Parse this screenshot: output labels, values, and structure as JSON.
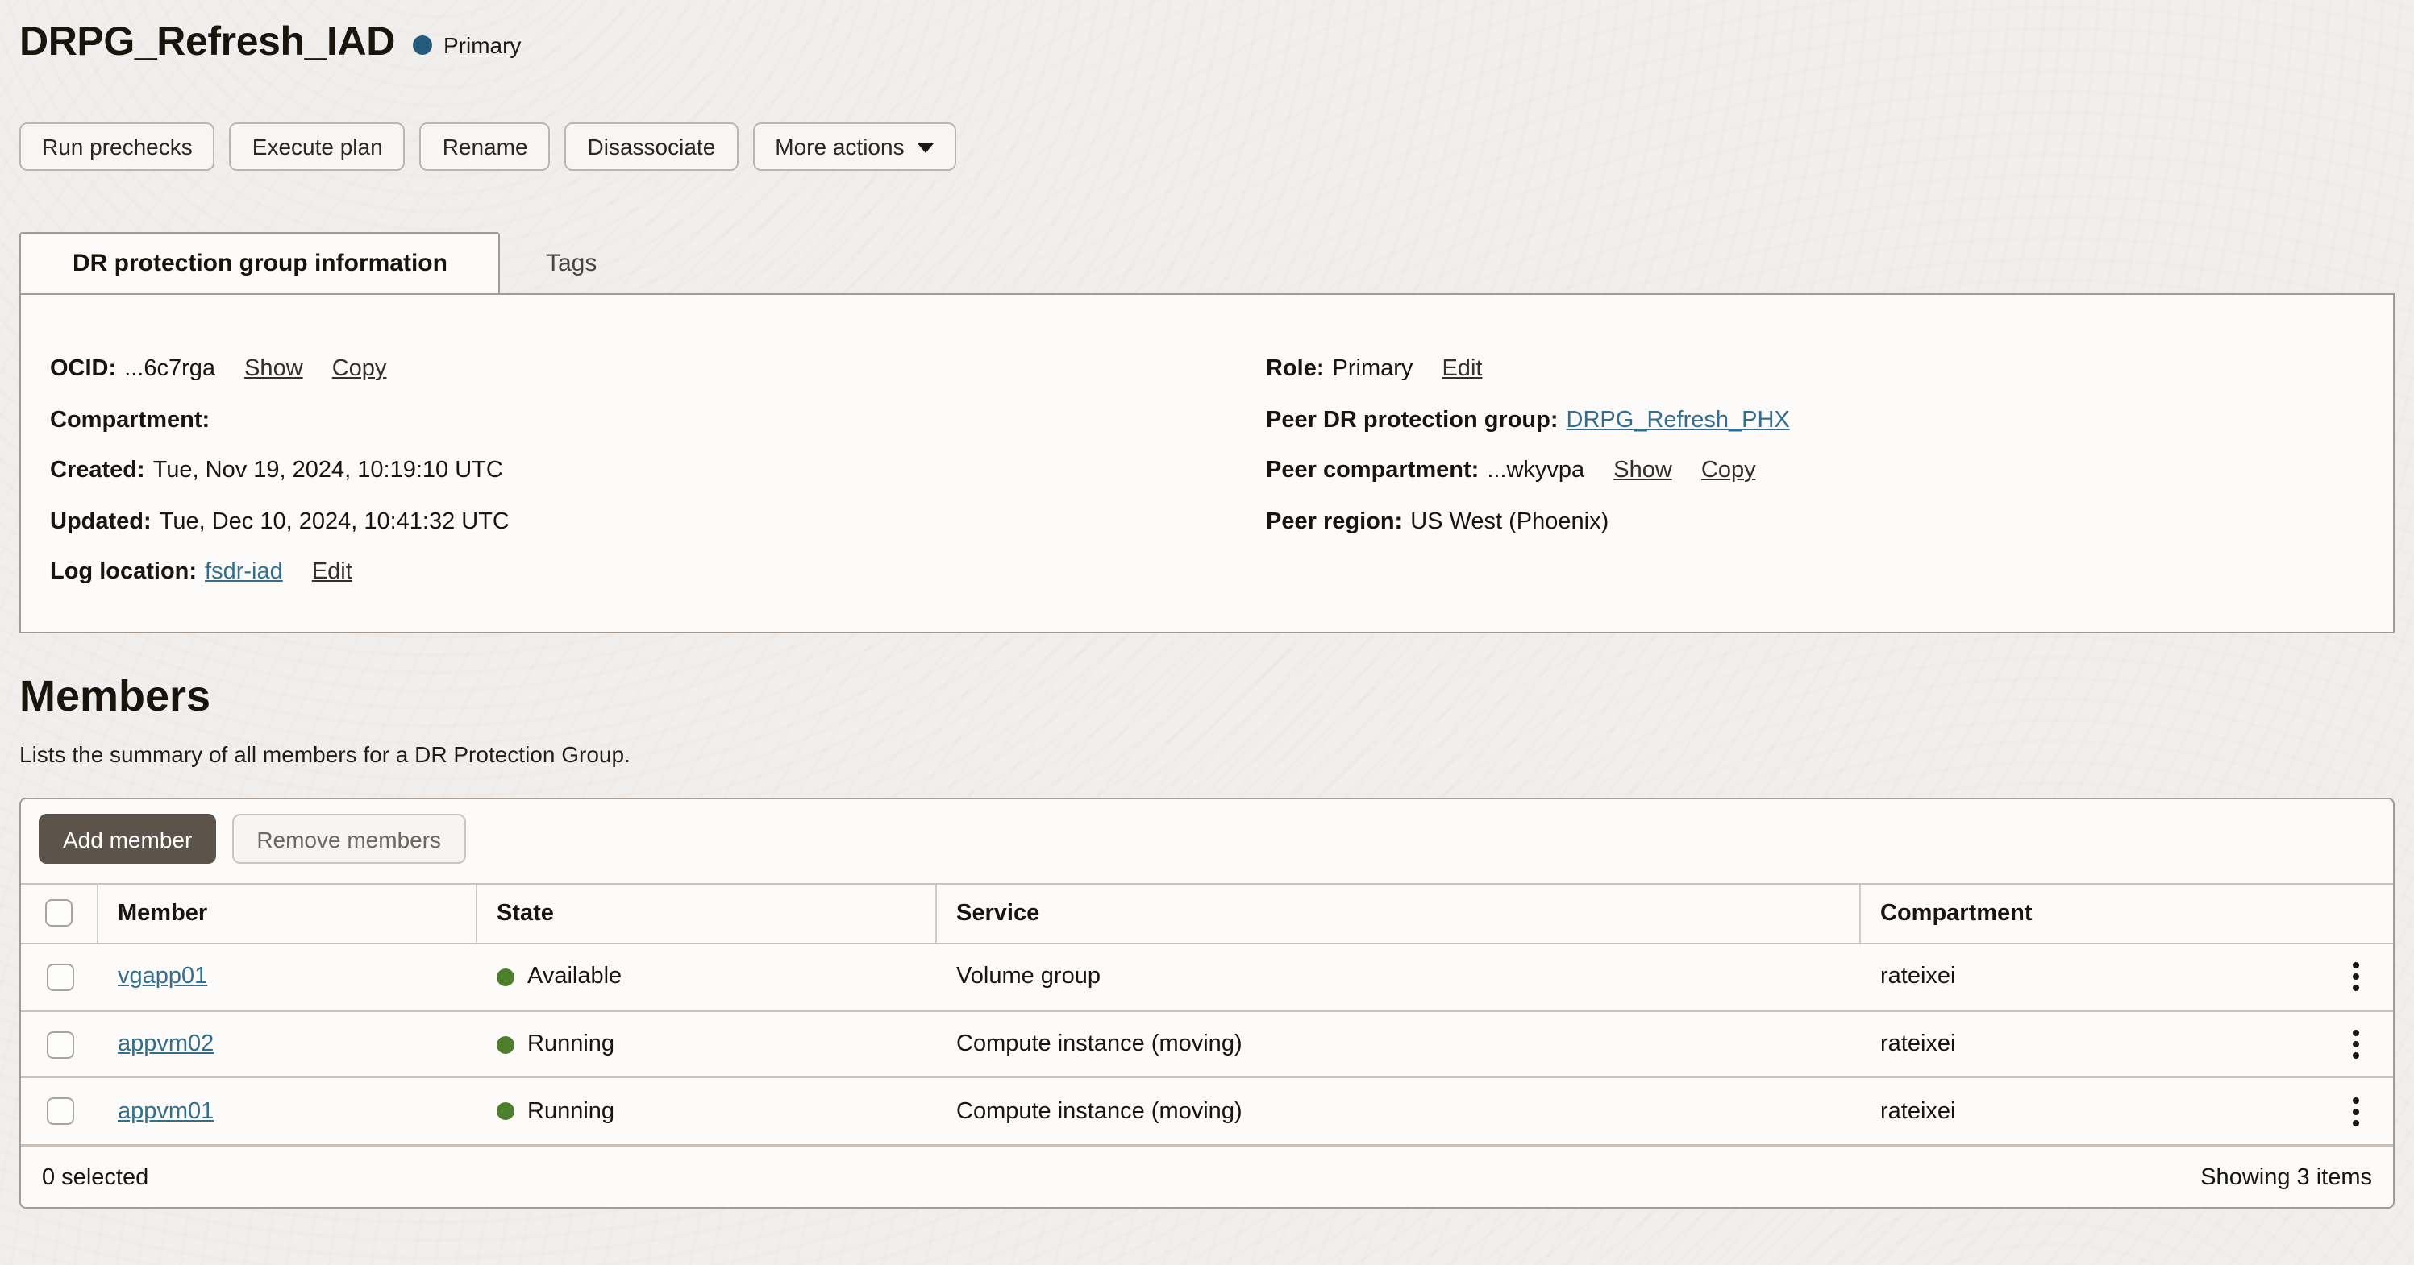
{
  "header": {
    "title": "DRPG_Refresh_IAD",
    "status_badge": "Primary"
  },
  "actions": {
    "buttons": [
      "Run prechecks",
      "Execute plan",
      "Rename",
      "Disassociate"
    ],
    "more_label": "More actions"
  },
  "tabs": {
    "active": "DR protection group information",
    "inactive": "Tags"
  },
  "info": {
    "left": {
      "ocid": {
        "label": "OCID:",
        "value": "...6c7rga",
        "links": [
          "Show",
          "Copy"
        ]
      },
      "compartment": {
        "label": "Compartment:",
        "value": ""
      },
      "created": {
        "label": "Created:",
        "value": "Tue, Nov 19, 2024, 10:19:10 UTC"
      },
      "updated": {
        "label": "Updated:",
        "value": "Tue, Dec 10, 2024, 10:41:32 UTC"
      },
      "log_location": {
        "label": "Log location:",
        "link": "fsdr-iad",
        "action": "Edit"
      }
    },
    "right": {
      "role": {
        "label": "Role:",
        "value": "Primary",
        "action": "Edit"
      },
      "peer_group": {
        "label": "Peer DR protection group:",
        "link": "DRPG_Refresh_PHX"
      },
      "peer_compartment": {
        "label": "Peer compartment:",
        "value": "...wkyvpa",
        "links": [
          "Show",
          "Copy"
        ]
      },
      "peer_region": {
        "label": "Peer region:",
        "value": "US West (Phoenix)"
      }
    }
  },
  "members": {
    "heading": "Members",
    "description": "Lists the summary of all members for a DR Protection Group.",
    "toolbar": {
      "add_label": "Add member",
      "remove_label": "Remove members"
    },
    "table": {
      "columns": [
        "Member",
        "State",
        "Service",
        "Compartment"
      ],
      "rows": [
        {
          "member": "vgapp01",
          "state": "Available",
          "service": "Volume group",
          "compartment": "rateixei"
        },
        {
          "member": "appvm02",
          "state": "Running",
          "service": "Compute instance (moving)",
          "compartment": "rateixei"
        },
        {
          "member": "appvm01",
          "state": "Running",
          "service": "Compute instance (moving)",
          "compartment": "rateixei"
        }
      ]
    },
    "footer": {
      "selected": "0 selected",
      "showing": "Showing 3 items"
    }
  },
  "colors": {
    "primary_badge_dot": "#255c7c",
    "status_green_dot": "#4d7e2b",
    "link_blue": "#336e8e",
    "add_button_bg": "#5c544b",
    "page_bg": "#f1efed",
    "panel_bg": "#fcfbf9"
  }
}
